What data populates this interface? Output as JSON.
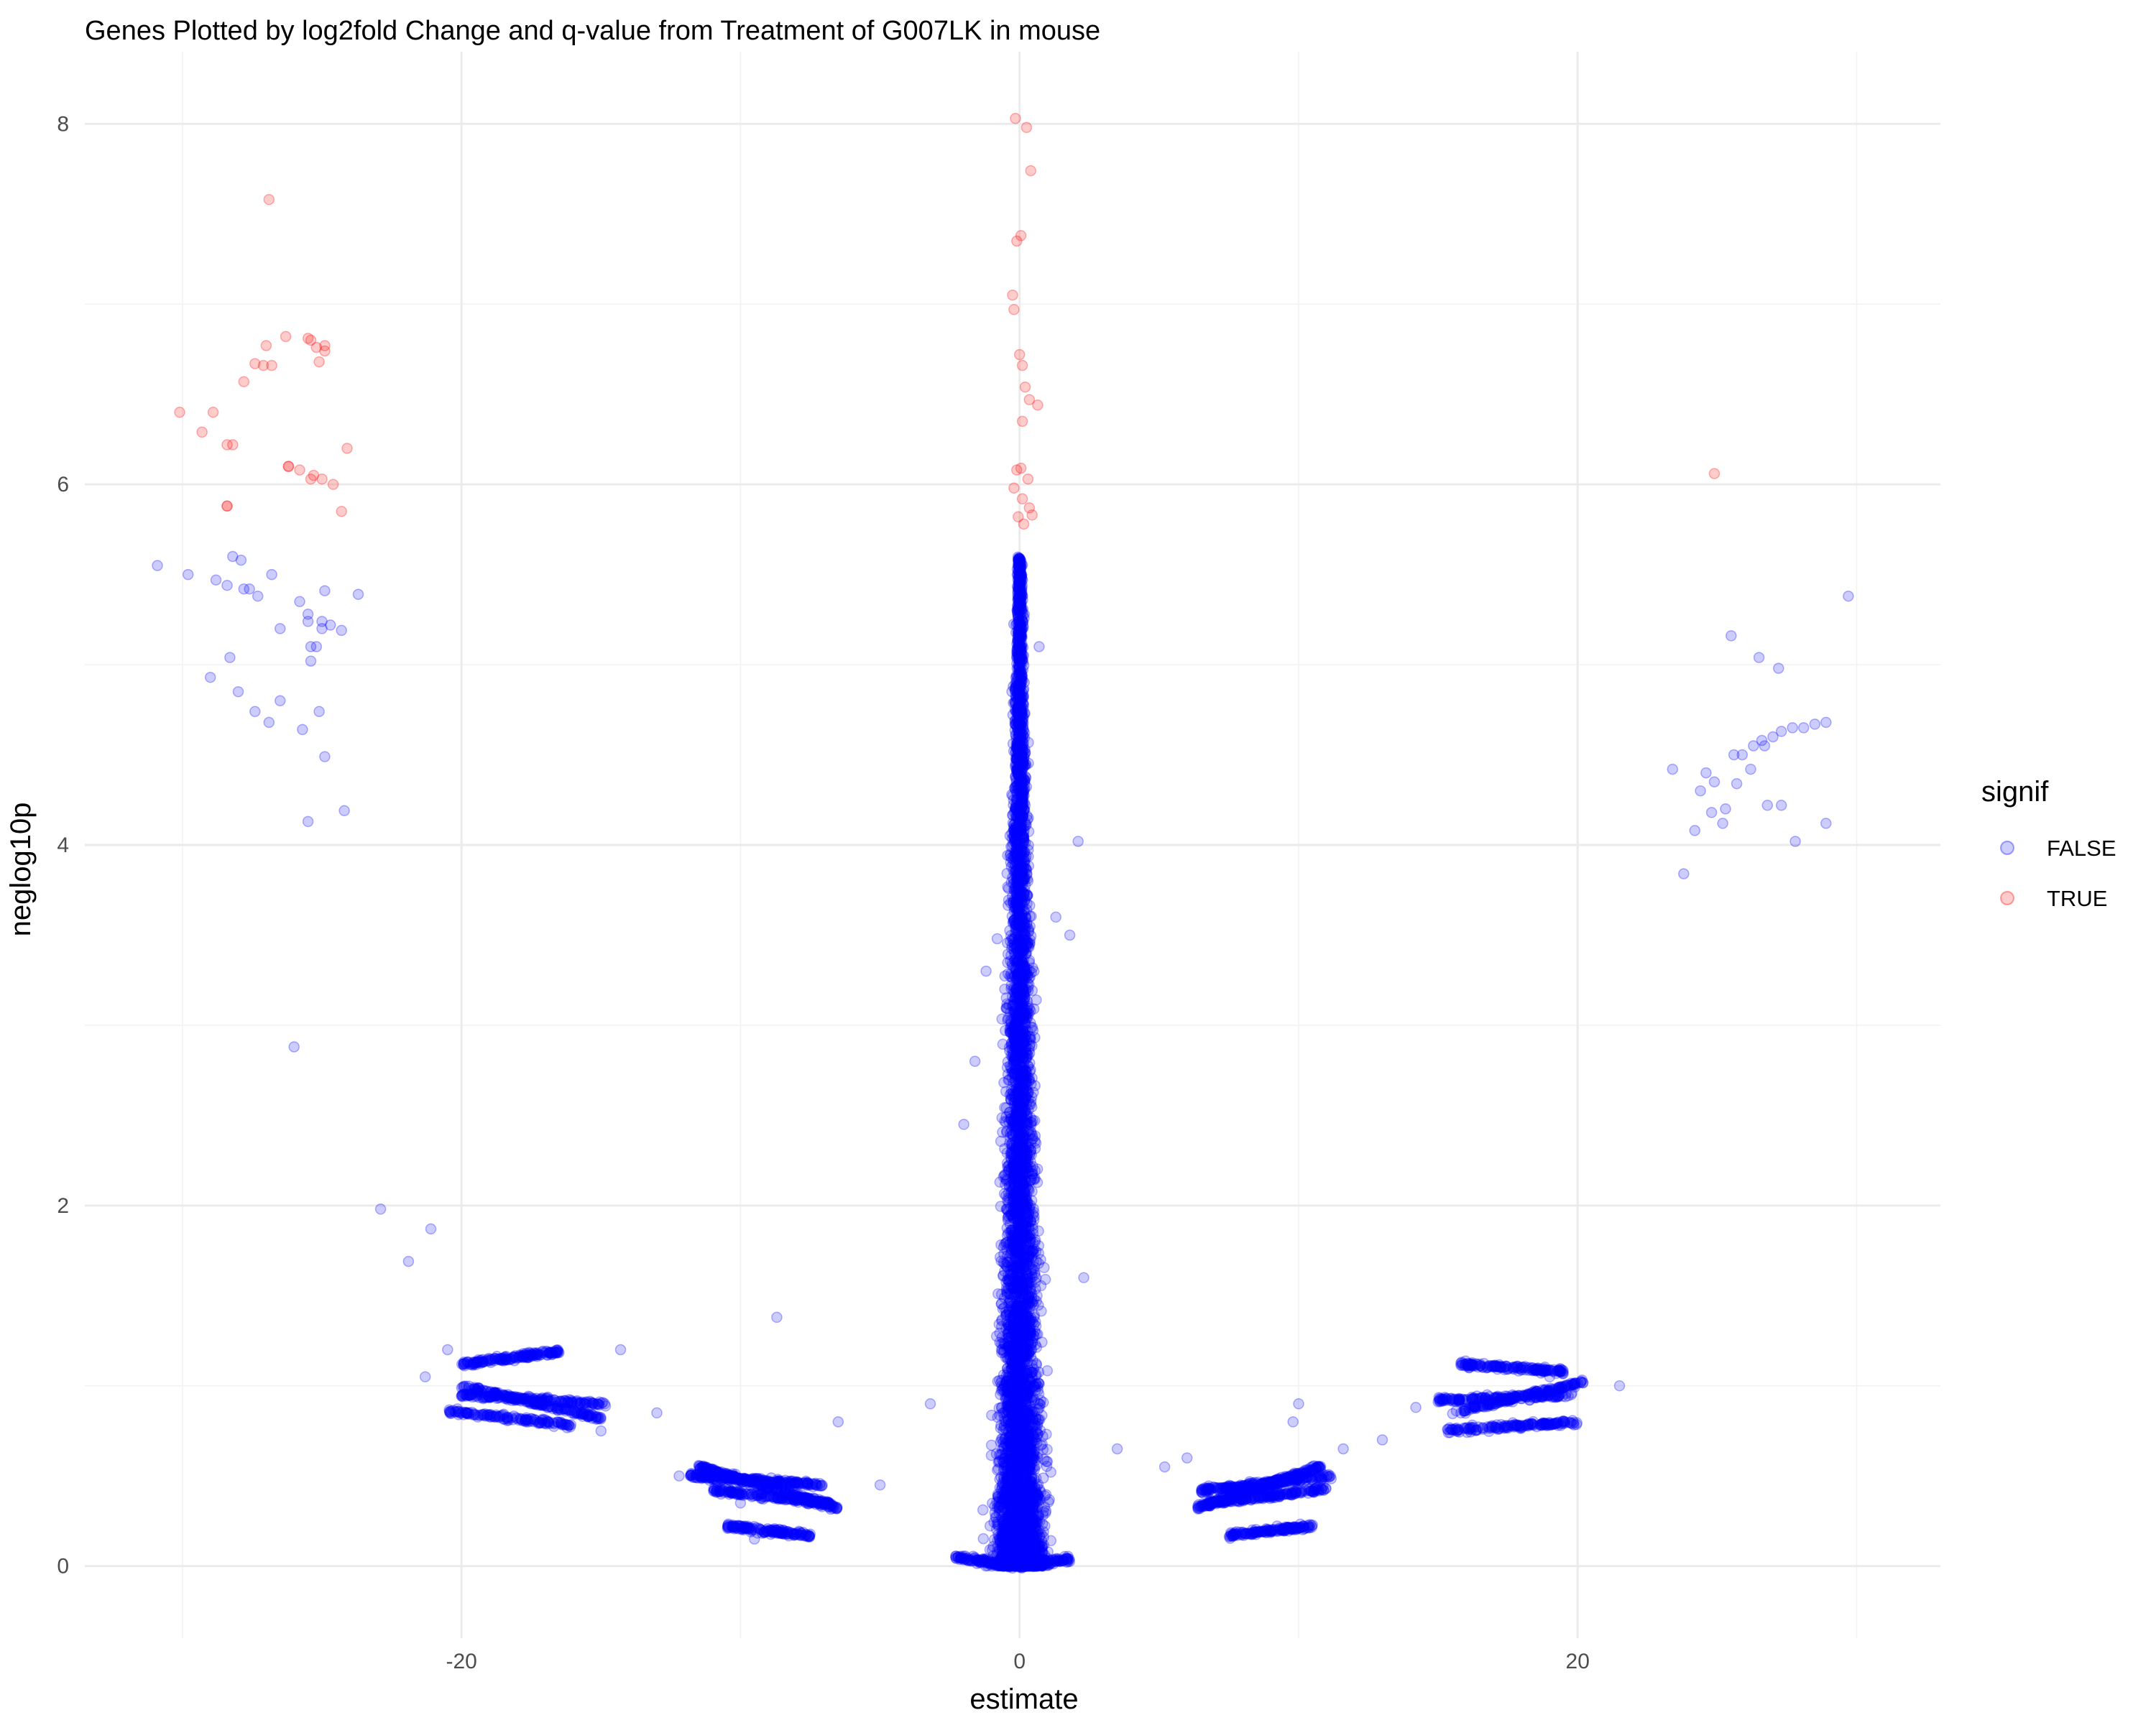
{
  "chart_data": {
    "type": "scatter",
    "title": "Genes Plotted by log2fold Change and q-value from Treatment of G007LK in mouse",
    "xlabel": "estimate",
    "ylabel": "neglog10p",
    "xlim": [
      -33.5,
      33
    ],
    "ylim": [
      -0.4,
      8.4
    ],
    "x_ticks": [
      -20,
      0,
      20
    ],
    "x_tick_labels": [
      "-20",
      "0",
      "20"
    ],
    "x_minor_ticks": [
      -30,
      -10,
      10,
      30
    ],
    "y_ticks": [
      0,
      2,
      4,
      6,
      8
    ],
    "y_tick_labels": [
      "0",
      "2",
      "4",
      "6",
      "8"
    ],
    "y_minor_ticks": [
      1,
      3,
      5,
      7
    ],
    "grid": true,
    "point_alpha": 0.2,
    "legend": {
      "title": "signif",
      "position": "right",
      "entries": [
        {
          "label": "FALSE",
          "color": "#0000ff"
        },
        {
          "label": "TRUE",
          "color": "#ff0000"
        }
      ]
    },
    "series": [
      {
        "name": "FALSE",
        "color": "#0000ff",
        "x": [
          -30.9,
          -29.8,
          -28.8,
          -28.2,
          -28.4,
          -27.9,
          -27.6,
          -27.3,
          -27.8,
          -26.8,
          -25.8,
          -25.5,
          -25.5,
          -25.0,
          -24.7,
          -24.9,
          -24.3,
          -23.7,
          -26.5,
          -28.3,
          -29.0,
          -28.0,
          -27.4,
          -26.9,
          -26.5,
          -25.7,
          -25.1,
          -24.9,
          -25.4,
          -25.2,
          -24.2,
          -25.5,
          -25.4,
          -25.0,
          -26.0,
          -22.9,
          -21.1,
          -21.9,
          -14.3,
          -8.7,
          23.8,
          24.4,
          24.6,
          24.9,
          25.3,
          25.6,
          25.9,
          26.3,
          26.6,
          27.0,
          27.3,
          27.7,
          28.1,
          28.5,
          28.9,
          24.2,
          24.8,
          25.2,
          25.7,
          26.2,
          26.8,
          27.3,
          27.8,
          26.5,
          27.2,
          25.5,
          29.7,
          28.9,
          26.7,
          23.4,
          -0.8,
          0.3,
          1.3,
          -1.2,
          1.8,
          2.1,
          -1.6,
          -2.0,
          0.7,
          2.3,
          -3.2,
          3.5,
          -5.0,
          5.2,
          -6.5,
          6.0,
          -10.0,
          10.0,
          -13.0,
          13.0,
          -15.0,
          14.2,
          -21.3,
          21.5,
          -20.5,
          19.0,
          -9.5,
          9.8,
          -12.2,
          11.6
        ],
        "y": [
          5.55,
          5.5,
          5.47,
          5.6,
          5.44,
          5.58,
          5.42,
          5.38,
          5.42,
          5.5,
          5.35,
          5.28,
          5.24,
          5.24,
          5.22,
          5.41,
          5.19,
          5.39,
          5.2,
          5.04,
          4.93,
          4.85,
          4.74,
          4.68,
          4.8,
          4.64,
          4.74,
          4.49,
          5.1,
          5.1,
          4.19,
          4.13,
          5.02,
          5.2,
          2.88,
          1.98,
          1.87,
          1.69,
          1.2,
          1.38,
          3.84,
          4.3,
          4.4,
          4.35,
          4.2,
          4.5,
          4.5,
          4.55,
          4.58,
          4.6,
          4.63,
          4.65,
          4.65,
          4.67,
          4.12,
          4.08,
          4.18,
          4.12,
          4.34,
          4.42,
          4.22,
          4.22,
          4.02,
          5.04,
          4.98,
          5.16,
          5.38,
          4.68,
          4.55,
          4.42,
          3.48,
          3.8,
          3.6,
          3.3,
          3.5,
          4.02,
          2.8,
          2.45,
          5.1,
          1.6,
          0.9,
          0.65,
          0.45,
          0.55,
          0.8,
          0.6,
          0.35,
          0.9,
          0.85,
          0.7,
          0.75,
          0.88,
          1.05,
          1.0,
          1.2,
          1.05,
          0.15,
          0.8,
          0.5,
          0.65
        ],
        "bands": [
          {
            "x_range": [
              -20.0,
              -16.5
            ],
            "y_start": 1.12,
            "y_end": 1.19,
            "n": 160
          },
          {
            "x_range": [
              -20.0,
              -15.0
            ],
            "y_start": 1.0,
            "y_end": 0.82,
            "n": 180
          },
          {
            "x_range": [
              -20.0,
              -14.8
            ],
            "y_start": 0.95,
            "y_end": 0.9,
            "n": 160
          },
          {
            "x_range": [
              -20.5,
              -16.0
            ],
            "y_start": 0.86,
            "y_end": 0.78,
            "n": 140
          },
          {
            "x_range": [
              -11.5,
              -6.5
            ],
            "y_start": 0.55,
            "y_end": 0.32,
            "n": 250
          },
          {
            "x_range": [
              -11.8,
              -7.0
            ],
            "y_start": 0.5,
            "y_end": 0.45,
            "n": 220
          },
          {
            "x_range": [
              -10.5,
              -7.5
            ],
            "y_start": 0.22,
            "y_end": 0.17,
            "n": 150
          },
          {
            "x_range": [
              -11.0,
              -6.8
            ],
            "y_start": 0.42,
            "y_end": 0.35,
            "n": 180
          },
          {
            "x_range": [
              6.3,
              10.8
            ],
            "y_start": 0.32,
            "y_end": 0.55,
            "n": 250
          },
          {
            "x_range": [
              6.5,
              11.2
            ],
            "y_start": 0.42,
            "y_end": 0.5,
            "n": 220
          },
          {
            "x_range": [
              7.5,
              10.5
            ],
            "y_start": 0.17,
            "y_end": 0.22,
            "n": 150
          },
          {
            "x_range": [
              6.8,
              11.0
            ],
            "y_start": 0.35,
            "y_end": 0.43,
            "n": 180
          },
          {
            "x_range": [
              15.8,
              19.5
            ],
            "y_start": 1.12,
            "y_end": 1.08,
            "n": 160
          },
          {
            "x_range": [
              15.0,
              19.8
            ],
            "y_start": 0.92,
            "y_end": 0.95,
            "n": 160
          },
          {
            "x_range": [
              15.2,
              20.0
            ],
            "y_start": 0.75,
            "y_end": 0.8,
            "n": 160
          },
          {
            "x_range": [
              15.5,
              20.2
            ],
            "y_start": 0.85,
            "y_end": 1.02,
            "n": 160
          },
          {
            "x_range": [
              -2.3,
              0.0
            ],
            "y_start": 0.05,
            "y_end": 0.0,
            "n": 120
          },
          {
            "x_range": [
              0.0,
              1.8
            ],
            "y_start": 0.0,
            "y_end": 0.04,
            "n": 110
          }
        ],
        "central_spread": {
          "n": 6000,
          "y_max": 5.6,
          "x_width_at_base": 1.5,
          "x_width_at_top": 0.15
        }
      },
      {
        "name": "TRUE",
        "color": "#ff0000",
        "x": [
          -30.1,
          -29.3,
          -28.4,
          -27.8,
          -27.4,
          -27.0,
          -26.8,
          -26.3,
          -25.5,
          -25.4,
          -25.1,
          -24.9,
          -28.9,
          -28.4,
          -26.2,
          -25.8,
          -25.3,
          -25.0,
          -24.6,
          -24.3,
          -24.1,
          -24.9,
          -25.2,
          -26.2,
          -25.4,
          -28.4,
          -26.9,
          -27.1,
          -28.2,
          -0.15,
          0.25,
          0.4,
          -0.1,
          0.05,
          -0.25,
          -0.2,
          0.0,
          0.1,
          0.2,
          0.35,
          0.65,
          0.1,
          -0.1,
          0.05,
          0.3,
          -0.2,
          0.1,
          0.35,
          0.45,
          -0.05,
          0.15,
          24.9
        ],
        "y": [
          6.4,
          6.29,
          6.22,
          6.57,
          6.67,
          6.77,
          6.66,
          6.82,
          6.81,
          6.8,
          6.68,
          6.77,
          6.4,
          5.88,
          6.1,
          6.08,
          6.05,
          6.03,
          6.0,
          5.85,
          6.2,
          6.74,
          6.76,
          6.1,
          6.03,
          5.88,
          7.58,
          6.66,
          6.22,
          8.03,
          7.98,
          7.74,
          7.35,
          7.38,
          7.05,
          6.97,
          6.72,
          6.66,
          6.54,
          6.47,
          6.44,
          6.35,
          6.08,
          6.09,
          6.03,
          5.98,
          5.92,
          5.87,
          5.83,
          5.82,
          5.78,
          6.06
        ]
      }
    ]
  }
}
